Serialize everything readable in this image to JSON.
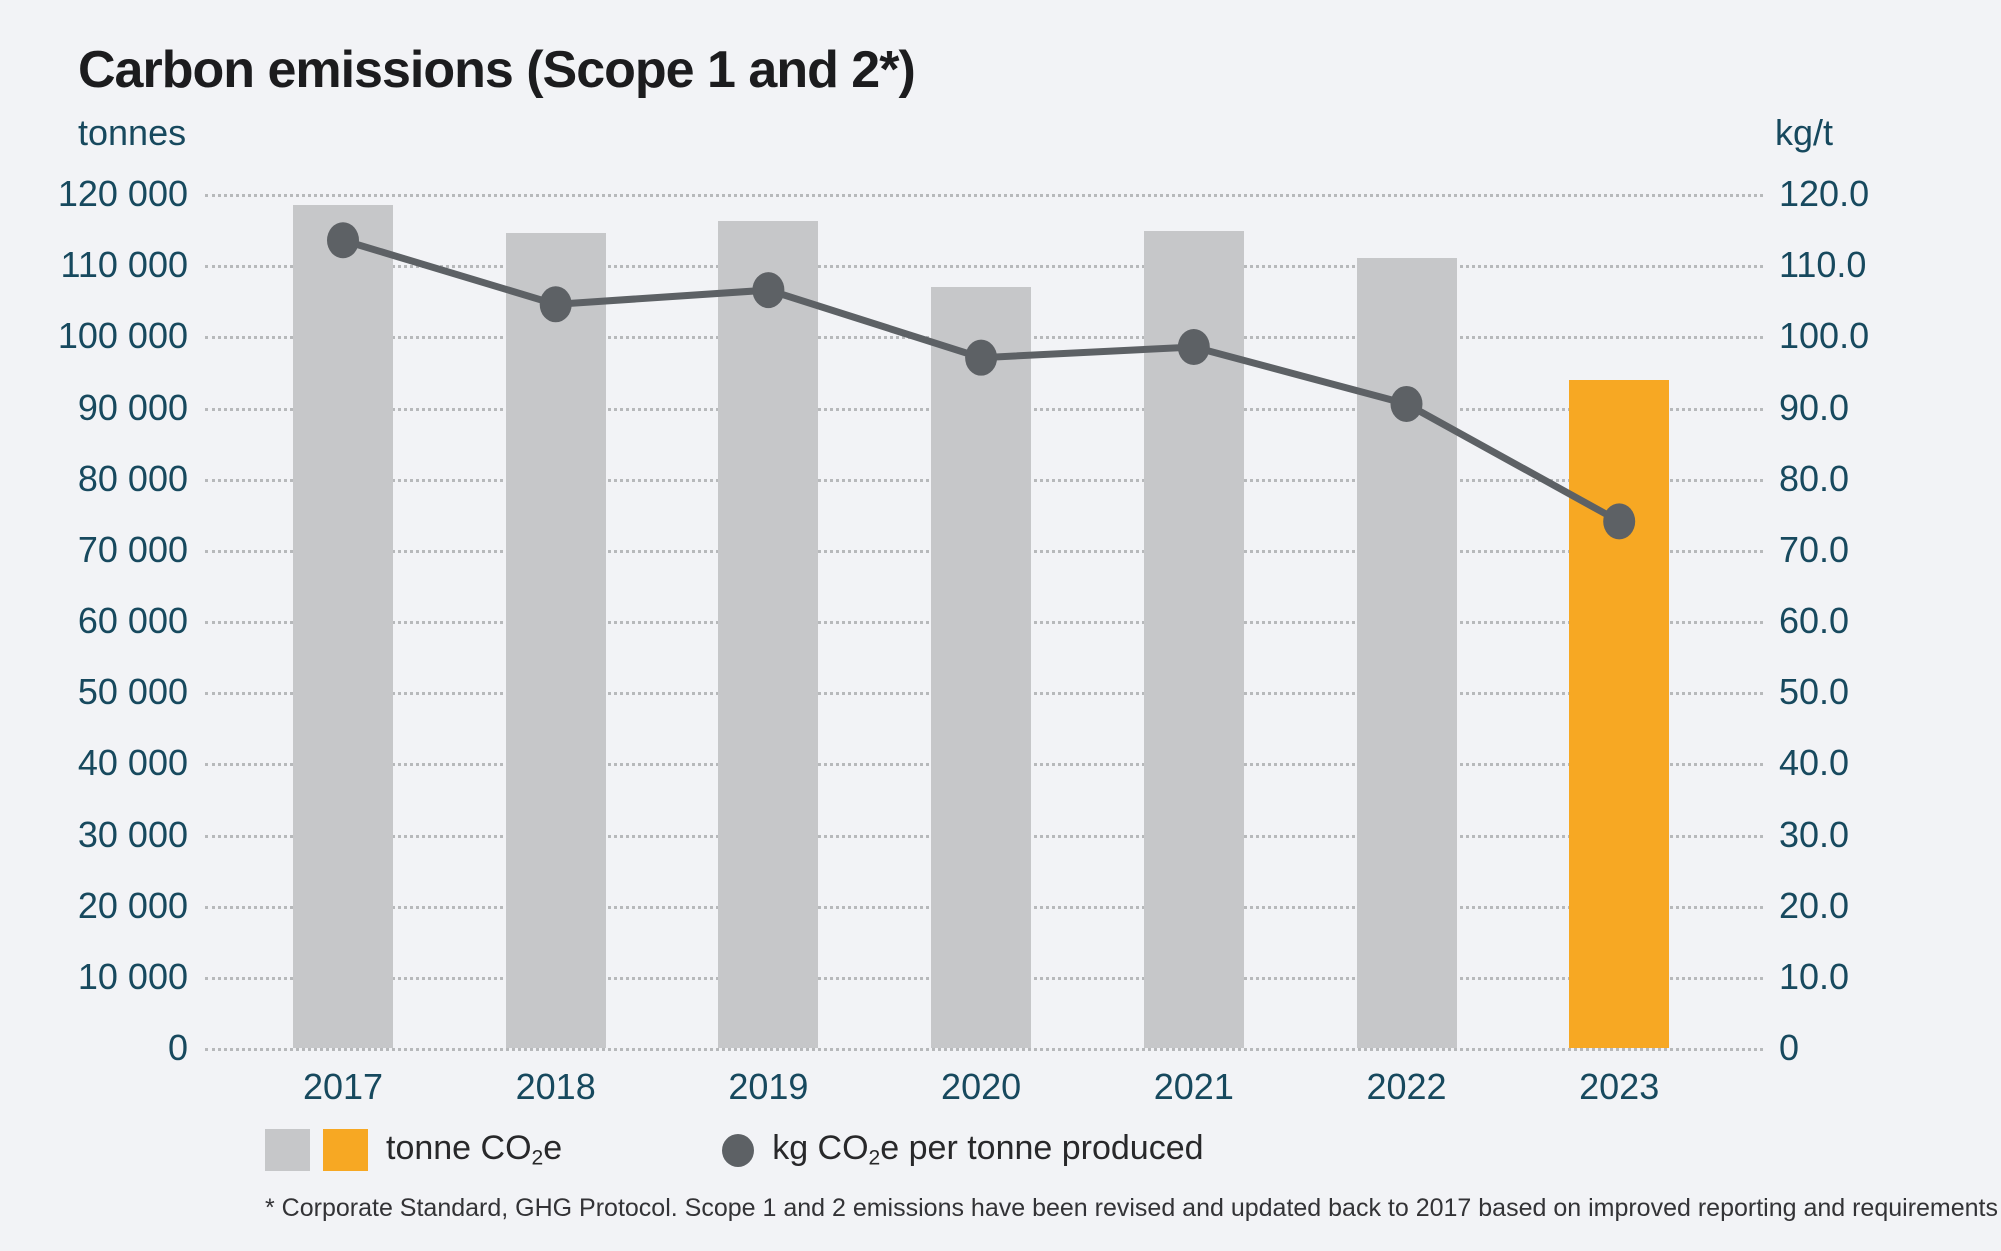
{
  "title": "Carbon emissions (Scope 1 and 2*)",
  "left_axis_unit": "tonnes",
  "right_axis_unit": "kg/t",
  "colors": {
    "background": "#f2f3f6",
    "bar_gray": "#c6c7c9",
    "bar_highlight_orange": "#f7a823",
    "line_gray": "#5d6165",
    "axis_text_teal": "#17495e",
    "gridline_gray": "#b7b9bb"
  },
  "chart_data": {
    "type": "bar+line",
    "categories": [
      "2017",
      "2018",
      "2019",
      "2020",
      "2021",
      "2022",
      "2023"
    ],
    "series": [
      {
        "name": "tonne CO2e",
        "type": "bar",
        "axis": "left",
        "values": [
          118400,
          114500,
          116200,
          107000,
          114800,
          111000,
          93800
        ],
        "highlight_index": 6
      },
      {
        "name": "kg CO2e per tonne produced",
        "type": "line",
        "axis": "right",
        "values": [
          113.5,
          104.5,
          106.5,
          97.0,
          98.5,
          90.5,
          74.0
        ]
      }
    ],
    "left_axis": {
      "min": 0,
      "max": 120000,
      "step": 10000,
      "tick_labels": [
        "120 000",
        "110 000",
        "100 000",
        "90 000",
        "80 000",
        "70 000",
        "60 000",
        "50 000",
        "40 000",
        "30 000",
        "20 000",
        "10 000",
        "0"
      ]
    },
    "right_axis": {
      "min": 0,
      "max": 120,
      "step": 10,
      "tick_labels": [
        "120.0",
        "110.0",
        "100.0",
        "90.0",
        "80.0",
        "70.0",
        "60.0",
        "50.0",
        "40.0",
        "30.0",
        "20.0",
        "10.0",
        "0"
      ]
    },
    "grid": "dotted horizontal",
    "legend_position": "bottom-left"
  },
  "legend": {
    "0": {
      "pre": "tonne CO",
      "sub": "2",
      "post": "e"
    },
    "1": {
      "pre": "kg CO",
      "sub": "2",
      "post": "e per tonne produced"
    }
  },
  "footnote": "* Corporate Standard, GHG Protocol. Scope 1 and 2 emissions have been revised and updated back to 2017 based on improved reporting and requirements"
}
